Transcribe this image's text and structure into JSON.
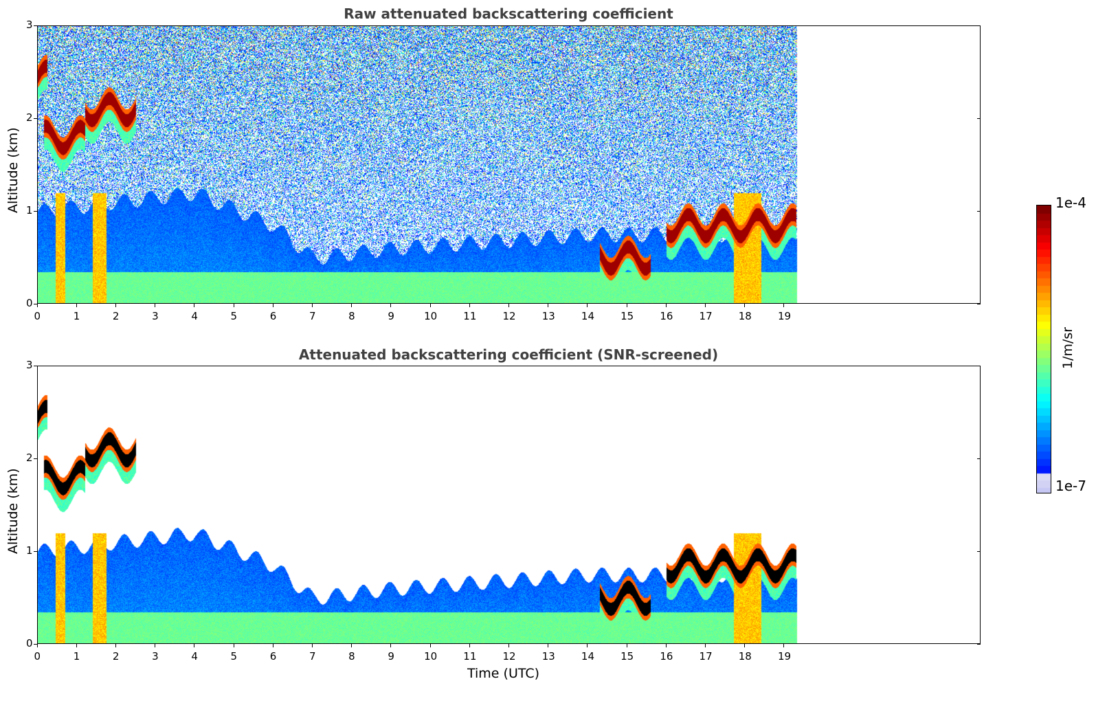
{
  "chart_data": [
    {
      "type": "heatmap",
      "title": "Raw attenuated backscattering coefficient",
      "xlabel": "",
      "ylabel": "Altitude (km)",
      "xlim": [
        0,
        24
      ],
      "ylim": [
        0,
        3
      ],
      "xticks": [
        "0",
        "1",
        "2",
        "3",
        "4",
        "5",
        "6",
        "7",
        "8",
        "9",
        "10",
        "11",
        "12",
        "13",
        "14",
        "15",
        "16",
        "17",
        "18",
        "19"
      ],
      "yticks": [
        "0",
        "1",
        "2",
        "3"
      ],
      "data_end_hour": 19.3,
      "screened": false,
      "features": {
        "cloud_layers": [
          {
            "t0": 0.0,
            "t1": 0.25,
            "alt_km": 2.45
          },
          {
            "t0": 0.15,
            "t1": 1.2,
            "alt_km": 1.8
          },
          {
            "t0": 1.2,
            "t1": 2.5,
            "alt_km": 2.1
          },
          {
            "t0": 14.3,
            "t1": 15.6,
            "alt_km": 0.5
          },
          {
            "t0": 16.0,
            "t1": 19.3,
            "alt_km": 0.85
          }
        ],
        "boundary_layer_top_km": [
          {
            "t": 0,
            "alt": 1.0
          },
          {
            "t": 4,
            "alt": 1.2
          },
          {
            "t": 6,
            "alt": 0.85
          },
          {
            "t": 7,
            "alt": 0.5
          },
          {
            "t": 9,
            "alt": 0.6
          },
          {
            "t": 14,
            "alt": 0.75
          }
        ],
        "precipitation": [
          {
            "t0": 0.45,
            "t1": 0.7
          },
          {
            "t0": 1.4,
            "t1": 1.75
          },
          {
            "t0": 17.7,
            "t1": 18.4
          }
        ]
      }
    },
    {
      "type": "heatmap",
      "title": "Attenuated backscattering coefficient (SNR-screened)",
      "xlabel": "Time (UTC)",
      "ylabel": "Altitude (km)",
      "xlim": [
        0,
        24
      ],
      "ylim": [
        0,
        3
      ],
      "xticks": [
        "0",
        "1",
        "2",
        "3",
        "4",
        "5",
        "6",
        "7",
        "8",
        "9",
        "10",
        "11",
        "12",
        "13",
        "14",
        "15",
        "16",
        "17",
        "18",
        "19"
      ],
      "yticks": [
        "0",
        "1",
        "2",
        "3"
      ],
      "data_end_hour": 19.3,
      "screened": true
    }
  ],
  "colorbar": {
    "label": "1/m/sr",
    "max_label": "1e-4",
    "min_label": "1e-7",
    "scale": "log",
    "colormap": "jet"
  }
}
